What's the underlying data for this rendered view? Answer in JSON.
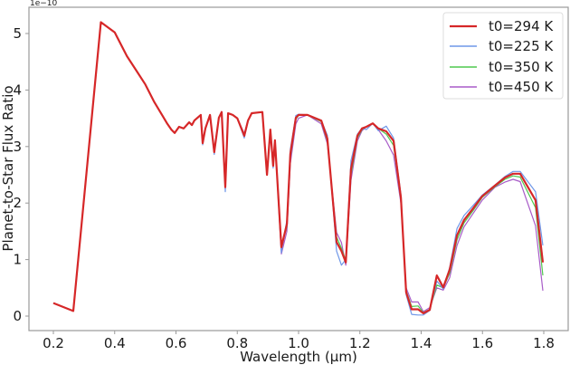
{
  "chart_data": {
    "type": "line",
    "title": "",
    "xlabel": "Wavelength (µm)",
    "ylabel": "Planet-to-Star Flux Ratio",
    "y_offset_label": "1e−10",
    "xlim": [
      0.15,
      1.86
    ],
    "ylim": [
      -0.25,
      5.5
    ],
    "xticks": [
      0.2,
      0.4,
      0.6,
      0.8,
      1.0,
      1.2,
      1.4,
      1.6,
      1.8
    ],
    "xtick_labels": [
      "0.2",
      "0.4",
      "0.6",
      "0.8",
      "1.0",
      "1.2",
      "1.4",
      "1.6",
      "1.8"
    ],
    "yticks": [
      0,
      1,
      2,
      3,
      4,
      5
    ],
    "ytick_labels": [
      "0",
      "1",
      "2",
      "3",
      "4",
      "5"
    ],
    "grid": false,
    "legend_position": "upper right",
    "units_multiplier": "1e-10",
    "x": [
      0.2,
      0.265,
      0.355,
      0.4,
      0.44,
      0.47,
      0.5,
      0.528,
      0.55,
      0.572,
      0.585,
      0.596,
      0.61,
      0.625,
      0.643,
      0.652,
      0.66,
      0.681,
      0.687,
      0.696,
      0.711,
      0.725,
      0.74,
      0.749,
      0.761,
      0.77,
      0.785,
      0.8,
      0.823,
      0.835,
      0.847,
      0.882,
      0.897,
      0.908,
      0.917,
      0.923,
      0.944,
      0.962,
      0.973,
      0.991,
      1.0,
      1.029,
      1.074,
      1.094,
      1.124,
      1.14,
      1.154,
      1.171,
      1.192,
      1.207,
      1.221,
      1.242,
      1.26,
      1.286,
      1.31,
      1.334,
      1.351,
      1.369,
      1.39,
      1.407,
      1.428,
      1.451,
      1.472,
      1.493,
      1.517,
      1.54,
      1.57,
      1.599,
      1.641,
      1.673,
      1.7,
      1.723,
      1.773,
      1.797
    ],
    "series": [
      {
        "name": "t0=294 K",
        "color": "#d62728",
        "width": 2.2,
        "values": [
          0.23,
          0.09,
          5.2,
          5.02,
          4.6,
          4.35,
          4.1,
          3.8,
          3.6,
          3.4,
          3.3,
          3.24,
          3.35,
          3.32,
          3.43,
          3.38,
          3.46,
          3.56,
          3.06,
          3.32,
          3.56,
          2.9,
          3.51,
          3.61,
          2.28,
          3.59,
          3.56,
          3.5,
          3.19,
          3.46,
          3.59,
          3.61,
          2.5,
          3.3,
          2.66,
          3.11,
          1.22,
          1.63,
          2.87,
          3.51,
          3.56,
          3.56,
          3.46,
          3.14,
          1.31,
          1.15,
          0.95,
          2.6,
          3.19,
          3.32,
          3.35,
          3.41,
          3.32,
          3.27,
          3.1,
          2.1,
          0.42,
          0.12,
          0.12,
          0.05,
          0.11,
          0.72,
          0.51,
          0.82,
          1.43,
          1.7,
          1.91,
          2.12,
          2.31,
          2.45,
          2.52,
          2.52,
          2.05,
          0.95
        ]
      },
      {
        "name": "t0=225 K",
        "color": "#6f97e8",
        "width": 1.2,
        "values": [
          0.23,
          0.09,
          5.2,
          5.02,
          4.6,
          4.35,
          4.1,
          3.8,
          3.6,
          3.4,
          3.3,
          3.24,
          3.35,
          3.32,
          3.43,
          3.38,
          3.46,
          3.56,
          3.03,
          3.32,
          3.56,
          2.86,
          3.51,
          3.61,
          2.2,
          3.59,
          3.56,
          3.5,
          3.15,
          3.46,
          3.59,
          3.61,
          2.5,
          3.3,
          2.62,
          3.11,
          1.12,
          1.7,
          2.95,
          3.55,
          3.57,
          3.56,
          3.46,
          3.2,
          1.15,
          0.9,
          1.0,
          2.75,
          3.22,
          3.32,
          3.3,
          3.41,
          3.28,
          3.36,
          3.15,
          2.15,
          0.38,
          0.03,
          0.02,
          0.02,
          0.1,
          0.62,
          0.48,
          0.86,
          1.55,
          1.78,
          1.96,
          2.14,
          2.32,
          2.47,
          2.56,
          2.56,
          2.2,
          1.25
        ]
      },
      {
        "name": "t0=350 K",
        "color": "#4fc94f",
        "width": 1.2,
        "values": [
          0.23,
          0.09,
          5.2,
          5.02,
          4.6,
          4.35,
          4.1,
          3.8,
          3.6,
          3.4,
          3.3,
          3.24,
          3.35,
          3.32,
          3.43,
          3.38,
          3.46,
          3.56,
          3.08,
          3.32,
          3.56,
          2.92,
          3.51,
          3.61,
          2.3,
          3.59,
          3.56,
          3.5,
          3.21,
          3.46,
          3.59,
          3.61,
          2.52,
          3.3,
          2.7,
          3.11,
          1.25,
          1.58,
          2.8,
          3.48,
          3.55,
          3.56,
          3.44,
          3.1,
          1.4,
          1.2,
          0.98,
          2.5,
          3.15,
          3.3,
          3.35,
          3.41,
          3.32,
          3.22,
          3.02,
          2.05,
          0.45,
          0.17,
          0.18,
          0.06,
          0.12,
          0.55,
          0.5,
          0.76,
          1.35,
          1.65,
          1.87,
          2.1,
          2.29,
          2.42,
          2.48,
          2.46,
          1.92,
          0.72
        ]
      },
      {
        "name": "t0=450 K",
        "color": "#a85cc8",
        "width": 1.2,
        "values": [
          0.23,
          0.09,
          5.2,
          5.02,
          4.6,
          4.35,
          4.1,
          3.8,
          3.6,
          3.4,
          3.3,
          3.24,
          3.35,
          3.32,
          3.43,
          3.38,
          3.46,
          3.56,
          3.1,
          3.32,
          3.56,
          2.94,
          3.51,
          3.61,
          2.32,
          3.59,
          3.56,
          3.5,
          3.23,
          3.46,
          3.59,
          3.61,
          2.55,
          3.3,
          2.72,
          3.11,
          1.1,
          1.5,
          2.7,
          3.4,
          3.5,
          3.56,
          3.4,
          3.05,
          1.48,
          1.3,
          0.9,
          2.4,
          3.1,
          3.28,
          3.35,
          3.41,
          3.3,
          3.1,
          2.85,
          2.0,
          0.5,
          0.25,
          0.25,
          0.08,
          0.15,
          0.5,
          0.46,
          0.68,
          1.25,
          1.58,
          1.82,
          2.05,
          2.28,
          2.37,
          2.42,
          2.38,
          1.6,
          0.45
        ]
      }
    ]
  },
  "legend": {
    "items": [
      {
        "label": "t0=294 K",
        "color": "#d62728"
      },
      {
        "label": "t0=225 K",
        "color": "#6f97e8"
      },
      {
        "label": "t0=350 K",
        "color": "#4fc94f"
      },
      {
        "label": "t0=450 K",
        "color": "#a85cc8"
      }
    ]
  },
  "axes": {
    "xlabel": "Wavelength (µm)",
    "ylabel": "Planet-to-Star Flux Ratio",
    "offset": "1e−10"
  }
}
